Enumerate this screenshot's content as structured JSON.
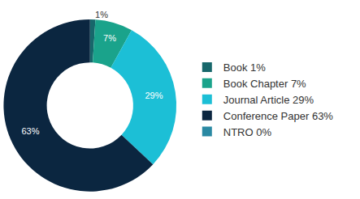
{
  "chart_data": {
    "type": "pie",
    "categories": [
      "Book 1%",
      "Book Chapter 7%",
      "Journal Article 29%",
      "Conference Paper 63%",
      "NTRO 0%"
    ],
    "values": [
      1,
      7,
      29,
      63,
      0
    ],
    "value_labels": [
      "1%",
      "7%",
      "29%",
      "63%",
      null
    ],
    "colors": [
      "#17676b",
      "#1aa38b",
      "#1cbfd6",
      "#0b2640",
      "#2a89a3"
    ],
    "legend": "right",
    "data_labels": true
  }
}
